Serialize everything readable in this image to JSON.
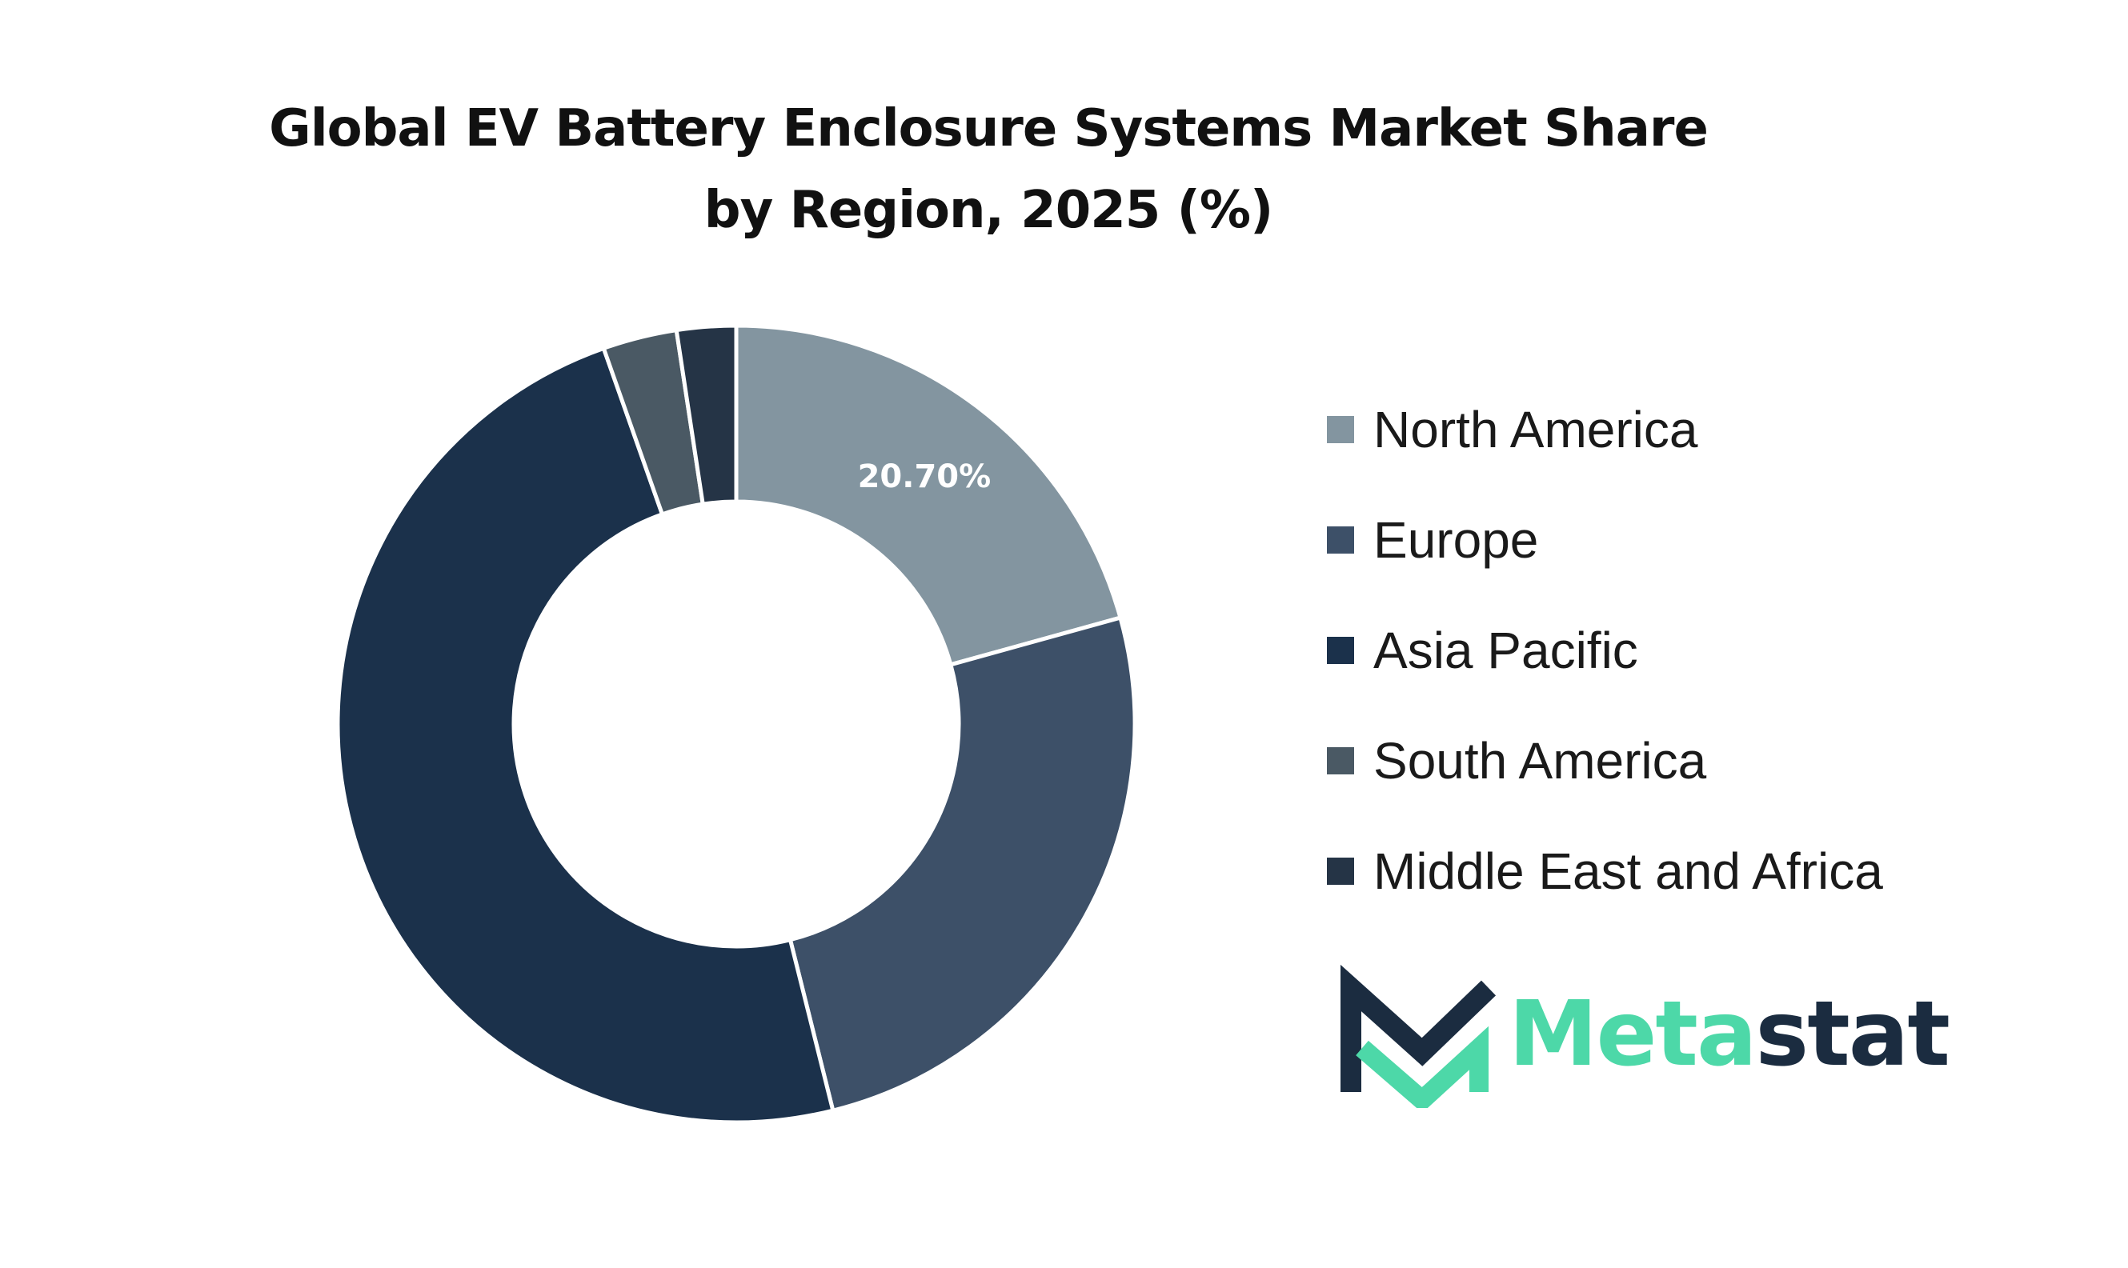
{
  "chart_data": {
    "type": "pie",
    "title": "Global EV Battery Enclosure Systems Market Share by Region, 2025 (%)",
    "categories": [
      "North America",
      "Europe",
      "Asia Pacific",
      "South America",
      "Middle East and Africa"
    ],
    "values": [
      20.7,
      25.4,
      48.5,
      3.0,
      2.4
    ],
    "data_labels": [
      "20.70%",
      "",
      "",
      "",
      ""
    ],
    "colors": [
      "#8395a0",
      "#3d5068",
      "#1b314b",
      "#4a5964",
      "#253446"
    ],
    "donut": true,
    "legend": "right"
  },
  "logo": {
    "text_part1": "Meta",
    "text_part2": "stat",
    "color_primary": "#4dd8a8",
    "color_secondary": "#1b2c40"
  }
}
